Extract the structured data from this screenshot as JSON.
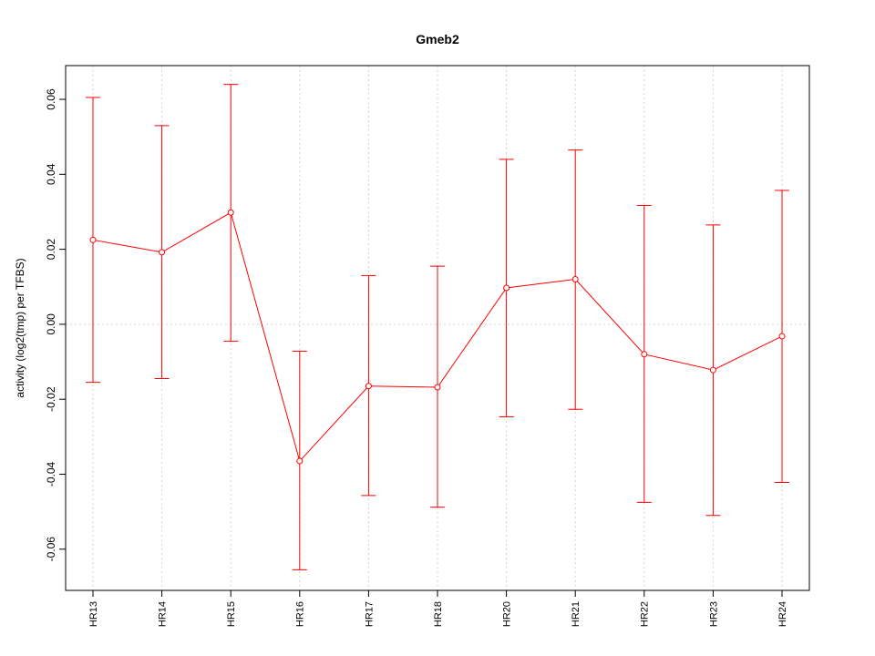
{
  "chart_data": {
    "type": "line",
    "title": "Gmeb2",
    "xlabel": "",
    "ylabel": "activity (log2(tmp) per TFBS)",
    "categories": [
      "HR13",
      "HR14",
      "HR15",
      "HR16",
      "HR17",
      "HR18",
      "HR20",
      "HR21",
      "HR22",
      "HR23",
      "HR24"
    ],
    "series": [
      {
        "values": [
          0.0225,
          0.0192,
          0.0298,
          -0.0365,
          -0.0165,
          -0.0168,
          0.0097,
          0.012,
          -0.008,
          -0.0122,
          -0.0032
        ],
        "upper": [
          0.0605,
          0.053,
          0.064,
          -0.0072,
          0.013,
          0.0155,
          0.044,
          0.0465,
          0.0317,
          0.0265,
          0.0357
        ],
        "lower": [
          -0.0155,
          -0.0145,
          -0.0045,
          -0.0655,
          -0.0457,
          -0.0488,
          -0.0247,
          -0.0227,
          -0.0475,
          -0.051,
          -0.0422
        ],
        "color": "#ff0000"
      }
    ],
    "ylim": [
      -0.071,
      0.069
    ],
    "yticks": [
      -0.06,
      -0.04,
      -0.02,
      0.0,
      0.02,
      0.04,
      0.06
    ],
    "ytick_labels": [
      "-0.06",
      "-0.04",
      "-0.02",
      "0.00",
      "0.02",
      "0.04",
      "0.06"
    ],
    "grid": true,
    "grid_color": "#d3d3d3"
  }
}
